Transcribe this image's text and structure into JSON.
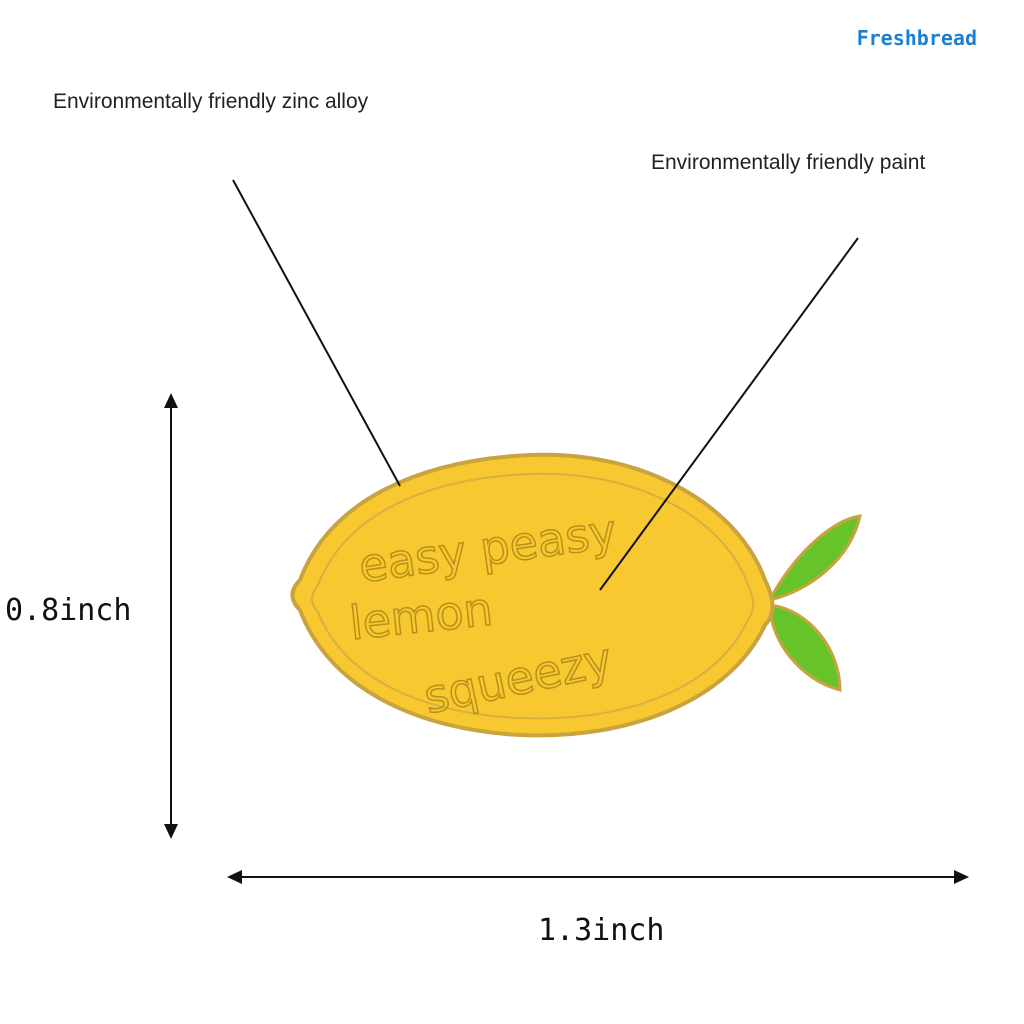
{
  "brand": "Freshbread",
  "labels": {
    "material": "Environmentally friendly zinc alloy",
    "paint": "Environmentally friendly paint"
  },
  "pin_text": [
    "easy peasy",
    "lemon",
    "squeezy"
  ],
  "dimensions": {
    "height": "0.8inch",
    "width": "1.3inch"
  }
}
